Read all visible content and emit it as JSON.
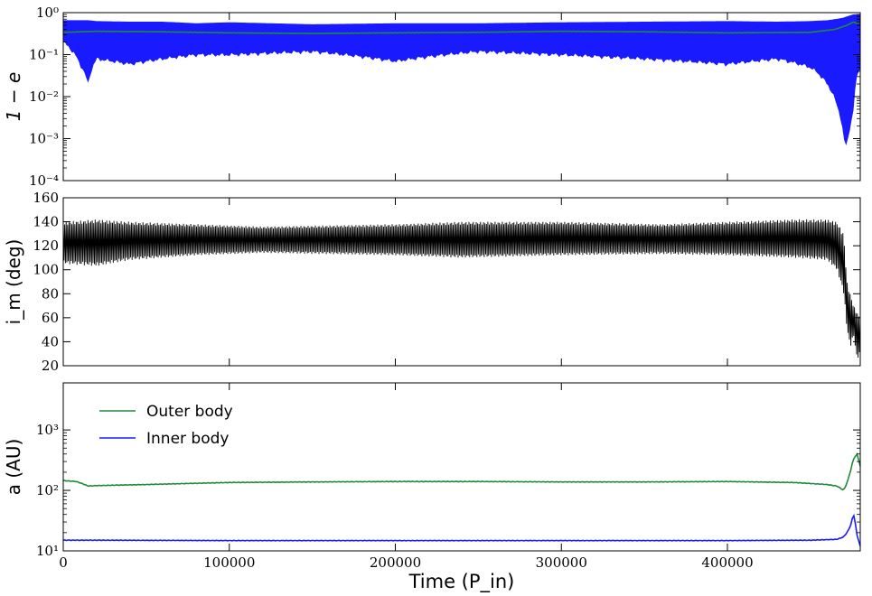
{
  "chart_data": [
    {
      "type": "line",
      "panel": "eccentricity",
      "ylabel": "1 − e",
      "yscale": "log",
      "ylim": [
        0.0001,
        1
      ],
      "yticks": [
        "10⁰",
        "10⁻¹",
        "10⁻²",
        "10⁻³",
        "10⁻⁴"
      ],
      "xlim": [
        0,
        480000
      ],
      "series": [
        {
          "color": "#1a1aff",
          "style": "band",
          "x": [
            0,
            10000,
            15000,
            20000,
            40000,
            60000,
            80000,
            100000,
            150000,
            200000,
            250000,
            300000,
            350000,
            400000,
            430000,
            450000,
            460000,
            466000,
            470000,
            472000,
            474000,
            476000,
            478000,
            480000
          ],
          "low": [
            0.2,
            0.06,
            0.02,
            0.08,
            0.06,
            0.08,
            0.1,
            0.1,
            0.12,
            0.07,
            0.12,
            0.1,
            0.08,
            0.06,
            0.08,
            0.05,
            0.02,
            0.006,
            0.001,
            0.0006,
            0.002,
            0.005,
            0.03,
            0.05
          ],
          "high": [
            0.65,
            0.65,
            0.65,
            0.62,
            0.6,
            0.6,
            0.55,
            0.58,
            0.52,
            0.55,
            0.55,
            0.58,
            0.6,
            0.62,
            0.6,
            0.62,
            0.65,
            0.7,
            0.75,
            0.8,
            0.85,
            0.9,
            0.9,
            0.9
          ]
        },
        {
          "color": "#1f8a3a",
          "style": "line",
          "x": [
            0,
            20000,
            60000,
            100000,
            150000,
            200000,
            250000,
            300000,
            350000,
            400000,
            450000,
            465000,
            472000,
            476000,
            478000,
            480000
          ],
          "values": [
            0.34,
            0.36,
            0.35,
            0.33,
            0.32,
            0.33,
            0.34,
            0.36,
            0.35,
            0.33,
            0.34,
            0.4,
            0.5,
            0.6,
            0.55,
            0.6
          ]
        }
      ]
    },
    {
      "type": "line",
      "panel": "inclination",
      "ylabel": "i_m (deg)",
      "ylim": [
        20,
        160
      ],
      "yticks": [
        20,
        40,
        60,
        80,
        100,
        120,
        140,
        160
      ],
      "xlim": [
        0,
        480000
      ],
      "series": [
        {
          "color": "#000000",
          "style": "oscillation",
          "x": [
            0,
            20000,
            40000,
            80000,
            120000,
            200000,
            240000,
            300000,
            360000,
            400000,
            440000,
            460000,
            466000,
            470000,
            472000,
            474000,
            476000,
            478000,
            480000
          ],
          "low": [
            105,
            103,
            108,
            112,
            114,
            112,
            110,
            112,
            113,
            112,
            110,
            108,
            100,
            80,
            50,
            35,
            45,
            25,
            30
          ],
          "high": [
            140,
            142,
            140,
            138,
            136,
            138,
            140,
            140,
            138,
            140,
            142,
            142,
            140,
            130,
            90,
            80,
            70,
            65,
            60
          ]
        }
      ]
    },
    {
      "type": "line",
      "panel": "semi-major-axis",
      "ylabel": "a (AU)",
      "yscale": "log",
      "ylim": [
        10,
        6000
      ],
      "yticks": [
        "10³",
        "10²",
        "10¹"
      ],
      "xlim": [
        0,
        480000
      ],
      "xticks": [
        0,
        100000,
        200000,
        300000,
        400000
      ],
      "xlabel": "Time (P_in)",
      "legend": "upper-left",
      "series": [
        {
          "name": "Outer body",
          "color": "#1f8a3a",
          "x": [
            0,
            8000,
            15000,
            20000,
            50000,
            100000,
            150000,
            200000,
            250000,
            300000,
            350000,
            400000,
            440000,
            460000,
            466000,
            470000,
            472000,
            474000,
            476000,
            478000,
            480000
          ],
          "values": [
            145,
            140,
            118,
            120,
            125,
            135,
            138,
            140,
            140,
            138,
            138,
            140,
            135,
            125,
            118,
            100,
            130,
            200,
            330,
            400,
            250
          ]
        },
        {
          "name": "Inner body",
          "color": "#1a1aff",
          "x": [
            0,
            20000,
            100000,
            200000,
            300000,
            400000,
            450000,
            466000,
            470000,
            472000,
            474000,
            476000,
            478000,
            480000
          ],
          "values": [
            15,
            15,
            14.8,
            14.8,
            14.8,
            14.8,
            15,
            15.5,
            17,
            20,
            25,
            40,
            18,
            12
          ]
        }
      ]
    }
  ]
}
